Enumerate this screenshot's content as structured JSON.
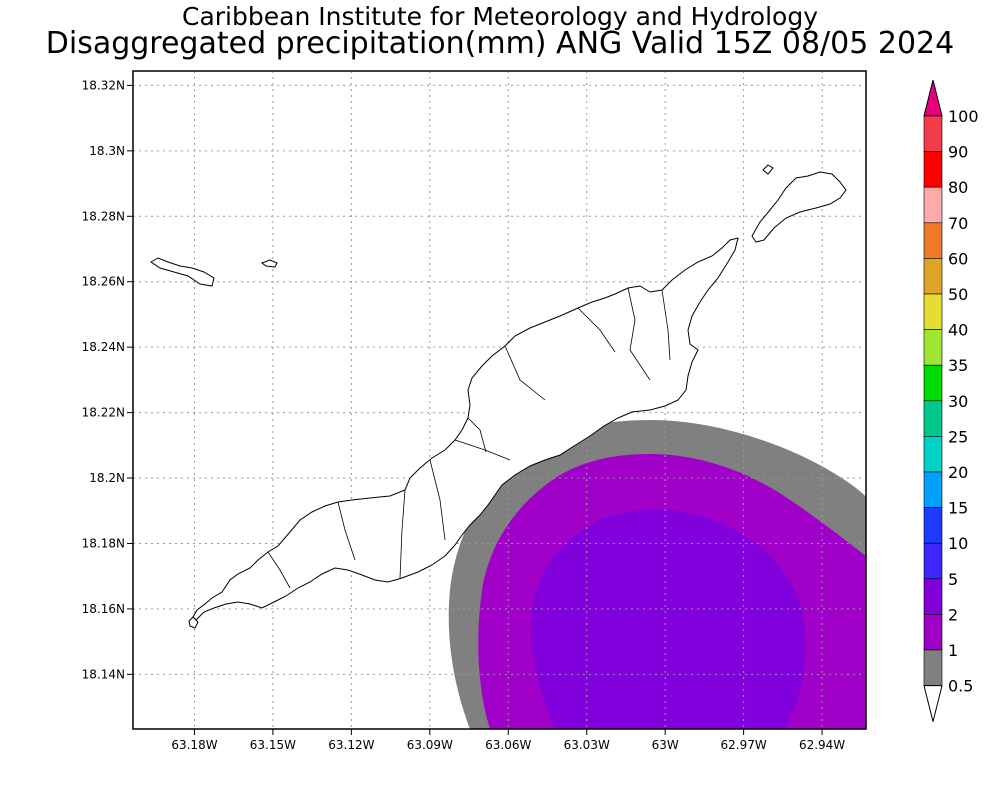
{
  "title_line1": "Caribbean Institute for Meteorology and Hydrology",
  "title_line2": "Disaggregated precipitation(mm) ANG Valid 15Z 08/05 2024",
  "map": {
    "lat_ticks": [
      "18.32N",
      "18.3N",
      "18.28N",
      "18.26N",
      "18.24N",
      "18.22N",
      "18.2N",
      "18.18N",
      "18.16N",
      "18.14N"
    ],
    "lon_ticks": [
      "63.18W",
      "63.15W",
      "63.12W",
      "63.09W",
      "63.06W",
      "63.03W",
      "63W",
      "62.97W",
      "62.94W"
    ],
    "lat_range": [
      18.1233,
      18.3244
    ],
    "lon_range": [
      -63.2035,
      -62.9232
    ],
    "gridlines": "dotted",
    "precip_field": {
      "center_lat": 18.155,
      "center_lon": -62.998,
      "levels": [
        {
          "min_mm": 0.5,
          "color": "#808080"
        },
        {
          "min_mm": 1,
          "color": "#a000c8"
        },
        {
          "min_mm": 2,
          "color": "#8200dc"
        }
      ]
    }
  },
  "colorbar": {
    "labels": [
      "100",
      "90",
      "80",
      "70",
      "60",
      "50",
      "40",
      "35",
      "30",
      "25",
      "20",
      "15",
      "10",
      "5",
      "2",
      "1",
      "0.5"
    ],
    "colors": [
      "#f03c4b",
      "#ff0000",
      "#ffaaaa",
      "#f07828",
      "#e0a528",
      "#e6dc32",
      "#a0e632",
      "#00dc00",
      "#00c88c",
      "#00d2c8",
      "#00a0ff",
      "#1e3cff",
      "#3c28ff",
      "#8200dc",
      "#a000c8",
      "#808080"
    ],
    "top_arrow_color": "#e6007e",
    "bottom_arrow_color": "#ffffff"
  }
}
